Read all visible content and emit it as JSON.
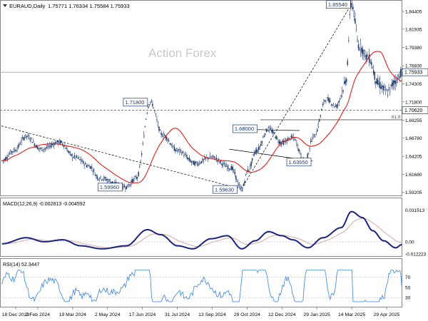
{
  "symbol_header": "EURAUD,Daily",
  "ohlc_values": "1.75771 1.76334 1.75584 1.75933",
  "watermark": "Action Forex",
  "macd_header": "MACD(12,26,9) -0.002813 -0.004592",
  "rsi_header": "RSI(14) 52.3447",
  "colors": {
    "candle": "#1f3a6e",
    "ma_line": "#e0201a",
    "macd_line": "#1a237e",
    "signal_line": "#d8a8a8",
    "rsi_line": "#4a90e2",
    "label_bg": "#ffffff",
    "label_border": "#1f3a6e",
    "trendline": "#000000"
  },
  "chart_data": [
    {
      "type": "candlestick",
      "name": "price",
      "y_ticks": [
        "1.84405",
        "1.81935",
        "1.79380",
        "1.76830",
        "1.74305",
        "1.71800",
        "1.69255",
        "1.66780",
        "1.64205",
        "1.61680",
        "1.59205"
      ],
      "ylim": [
        1.5885,
        1.857
      ],
      "annotations": {
        "peak_label": "1.85540",
        "jul_high_label": "1.71800",
        "dec_high_label": "1.68000",
        "jan_low_label": "1.63550",
        "jun_low_label": "1.59960",
        "nov_low_label": "1.59630",
        "last_price_badge": "1.75933",
        "level_badge": "1.70620",
        "fib_label": "61.8"
      },
      "levels": {
        "last": 1.75933,
        "support": 1.7062,
        "fib": 1.693
      },
      "anchors": {
        "jun_low": 1.5996,
        "jul_high": 1.718,
        "nov_low": 1.5963,
        "dec_high": 1.68,
        "jan_low": 1.6355,
        "peak": 1.8554,
        "last": 1.75933
      },
      "moving_average_shown": true
    },
    {
      "type": "line",
      "name": "MACD",
      "y_ticks": [
        "0.031513",
        "0.00",
        "-0.012223"
      ],
      "ylim": [
        -0.0135,
        0.0325
      ],
      "anchors": {
        "peak": 0.03,
        "last_macd": -0.002813,
        "last_signal": -0.004592
      }
    },
    {
      "type": "line",
      "name": "RSI",
      "y_ticks": [
        "70",
        "50",
        "30"
      ],
      "ylim": [
        12,
        92
      ],
      "anchors": {
        "last": 52.3447
      }
    },
    {
      "type": "axis",
      "x_ticks": [
        "18 Dec 2023",
        "2 Feb 2024",
        "19 Mar 2024",
        "2 May 2024",
        "17 Jun 2024",
        "31 Jul 2024",
        "13 Sep 2024",
        "29 Oct 2024",
        "12 Dec 2024",
        "29 Jan 2025",
        "14 Mar 2025",
        "29 Apr 2025"
      ]
    }
  ]
}
